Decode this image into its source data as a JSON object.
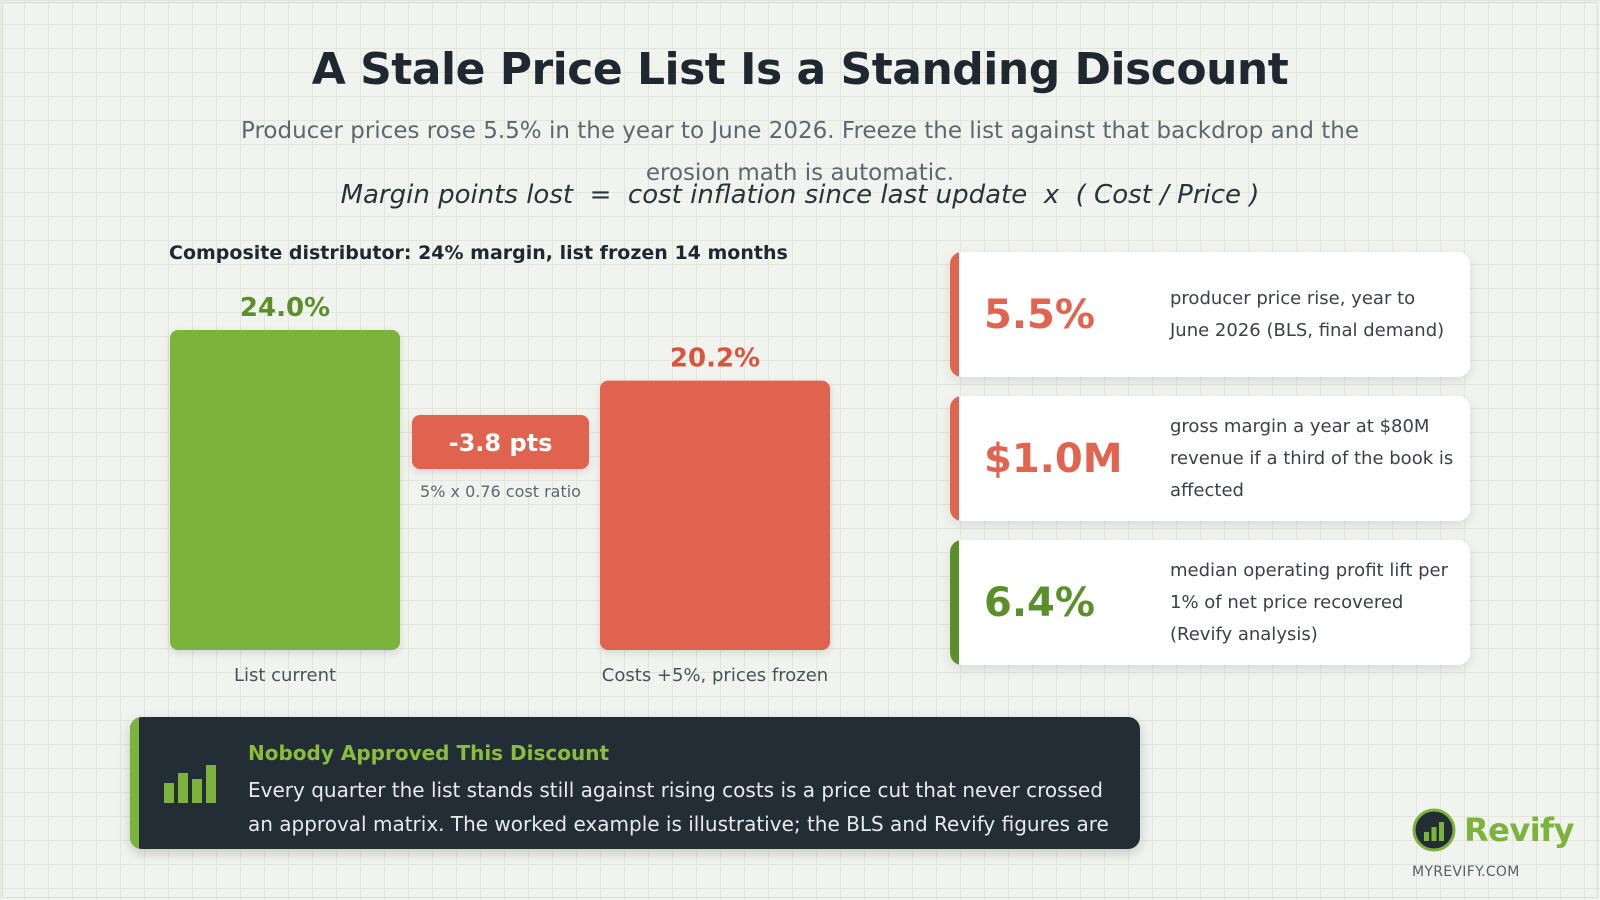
{
  "header": {
    "title": "A Stale Price List Is a Standing Discount",
    "subtitle": "Producer prices rose 5.5% in the year to June 2026. Freeze the list against that backdrop and the erosion math is automatic.",
    "formula": "Margin points lost  =  cost inflation since last update  x  ( Cost / Price )"
  },
  "colors": {
    "green": "#7cb33c",
    "red": "#e0644f",
    "dark": "#232d35"
  },
  "chart_data": {
    "type": "bar",
    "title": "Composite distributor: 24% margin, list frozen 14 months",
    "categories": [
      "List current",
      "Costs +5%, prices frozen"
    ],
    "values": [
      24.0,
      20.2
    ],
    "value_labels": [
      "24.0%",
      "20.2%"
    ],
    "delta": {
      "label": "-3.8 pts",
      "value": -3.8,
      "note": "5% x 0.76 cost ratio"
    },
    "ylim": [
      0,
      24.0
    ],
    "grid": false,
    "legend": "none"
  },
  "stats": [
    {
      "value": "5.5%",
      "desc": "producer price rise, year to June 2026 (BLS, final demand)",
      "color": "#e0644f"
    },
    {
      "value": "$1.0M",
      "desc": "gross margin a year at $80M revenue if a third of the book is affected",
      "color": "#e0644f"
    },
    {
      "value": "6.4%",
      "desc": "median operating profit lift per 1% of net price recovered (Revify analysis)",
      "color": "#5a8f2a"
    }
  ],
  "note": {
    "heading": "Nobody Approved This Discount",
    "body": "Every quarter the list stands still against rising costs is a price cut that never crossed an approval matrix. The worked example is illustrative; the BLS and Revify figures are cited in the article.",
    "icon": "bar-chart-icon"
  },
  "brand": {
    "name": "Revify",
    "url": "MYREVIFY.COM",
    "icon": "revify-logo-icon"
  }
}
